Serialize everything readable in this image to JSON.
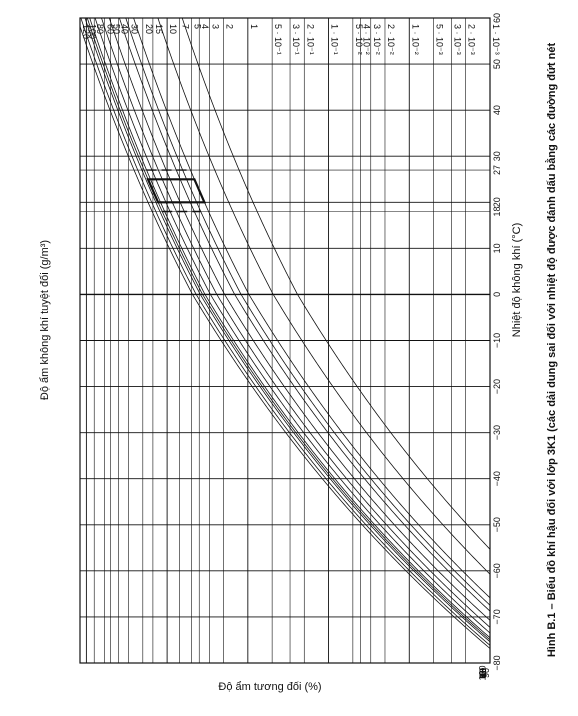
{
  "chart_data": {
    "type": "line",
    "caption": "Hình B.1 – Biểu đồ khí hậu đối với lớp 3K1 (các dải dung sai đối với nhiệt độ được đánh dấu bằng các đường đứt nét",
    "x_label": "Nhiệt độ không khí (°C)",
    "y_label": "Độ ẩm không khí tuyệt đối (g/m³)",
    "rh_label": "Độ ẩm tương đối (%)",
    "x_range": [
      -80,
      60
    ],
    "x_ticks": [
      {
        "v": -80,
        "label": "−80"
      },
      {
        "v": -70,
        "label": "−70"
      },
      {
        "v": -60,
        "label": "−60"
      },
      {
        "v": -50,
        "label": "−50"
      },
      {
        "v": -40,
        "label": "−40"
      },
      {
        "v": -30,
        "label": "−30"
      },
      {
        "v": -20,
        "label": "−20"
      },
      {
        "v": -10,
        "label": "−10"
      },
      {
        "v": 0,
        "label": "0"
      },
      {
        "v": 10,
        "label": "10"
      },
      {
        "v": 18,
        "label": "18"
      },
      {
        "v": 20,
        "label": "20"
      },
      {
        "v": 27,
        "label": "27"
      },
      {
        "v": 30,
        "label": "30"
      },
      {
        "v": 40,
        "label": "40"
      },
      {
        "v": 50,
        "label": "50"
      },
      {
        "v": 60,
        "label": "60"
      }
    ],
    "y_range": [
      0.001,
      120
    ],
    "y_scale": "log",
    "y_ticks": [
      {
        "v": 0.001,
        "label": "1 · 10⁻³"
      },
      {
        "v": 0.002,
        "label": "2 · 10⁻³"
      },
      {
        "v": 0.003,
        "label": "3 · 10⁻³"
      },
      {
        "v": 0.005,
        "label": "5 · 10⁻³"
      },
      {
        "v": 0.01,
        "label": "1 · 10⁻²"
      },
      {
        "v": 0.02,
        "label": "2 · 10⁻²"
      },
      {
        "v": 0.03,
        "label": "3 · 10⁻²"
      },
      {
        "v": 0.04,
        "label": "4 · 10⁻²"
      },
      {
        "v": 0.05,
        "label": "5 · 10⁻²"
      },
      {
        "v": 0.1,
        "label": "1 · 10⁻¹"
      },
      {
        "v": 0.2,
        "label": "2 · 10⁻¹"
      },
      {
        "v": 0.3,
        "label": "3 · 10⁻¹"
      },
      {
        "v": 0.5,
        "label": "5 · 10⁻¹"
      },
      {
        "v": 1,
        "label": "1"
      },
      {
        "v": 2,
        "label": "2"
      },
      {
        "v": 3,
        "label": "3"
      },
      {
        "v": 4,
        "label": "4"
      },
      {
        "v": 5,
        "label": "5"
      },
      {
        "v": 7,
        "label": "7"
      },
      {
        "v": 10,
        "label": "10"
      },
      {
        "v": 15,
        "label": "15"
      },
      {
        "v": 20,
        "label": "20"
      },
      {
        "v": 30,
        "label": "30"
      },
      {
        "v": 40,
        "label": "40"
      },
      {
        "v": 50,
        "label": "50"
      },
      {
        "v": 60,
        "label": "60"
      },
      {
        "v": 80,
        "label": "80"
      },
      {
        "v": 100,
        "label": "100"
      },
      {
        "v": 120,
        "label": "120"
      }
    ],
    "rh_curves": [
      100,
      90,
      80,
      75,
      70,
      60,
      50,
      40,
      30,
      25,
      20,
      10,
      5
    ],
    "rh_curve_labels": [
      {
        "v": 100,
        "label": "100"
      },
      {
        "v": 90,
        "label": "90"
      },
      {
        "v": 80,
        "label": "80"
      },
      {
        "v": 75,
        "label": "75"
      },
      {
        "v": 70,
        "label": "70"
      },
      {
        "v": 60,
        "label": "60"
      },
      {
        "v": 50,
        "label": "50"
      },
      {
        "v": 40,
        "label": "40"
      },
      {
        "v": 30,
        "label": "30"
      },
      {
        "v": 25,
        "label": "25"
      },
      {
        "v": 20,
        "label": "20"
      },
      {
        "v": 10,
        "label": "10"
      },
      {
        "v": 5,
        "label": "5"
      }
    ],
    "climate_region": {
      "points": [
        [
          20,
          1
        ],
        [
          20,
          5
        ],
        [
          25,
          25
        ],
        [
          27,
          25
        ],
        [
          27,
          20
        ],
        [
          25,
          20
        ],
        [
          25,
          75
        ],
        [
          20,
          75
        ],
        [
          18,
          70
        ],
        [
          18,
          25
        ],
        [
          20,
          20
        ]
      ],
      "x_min": 20,
      "x_max": 25,
      "rh_min": 20,
      "rh_max": 75,
      "dashed_upper": {
        "x": 27,
        "rh_from": 20,
        "rh_to": 70
      },
      "dashed_lower": {
        "x": 18,
        "rh_from": 25,
        "rh_to": 75
      }
    }
  }
}
